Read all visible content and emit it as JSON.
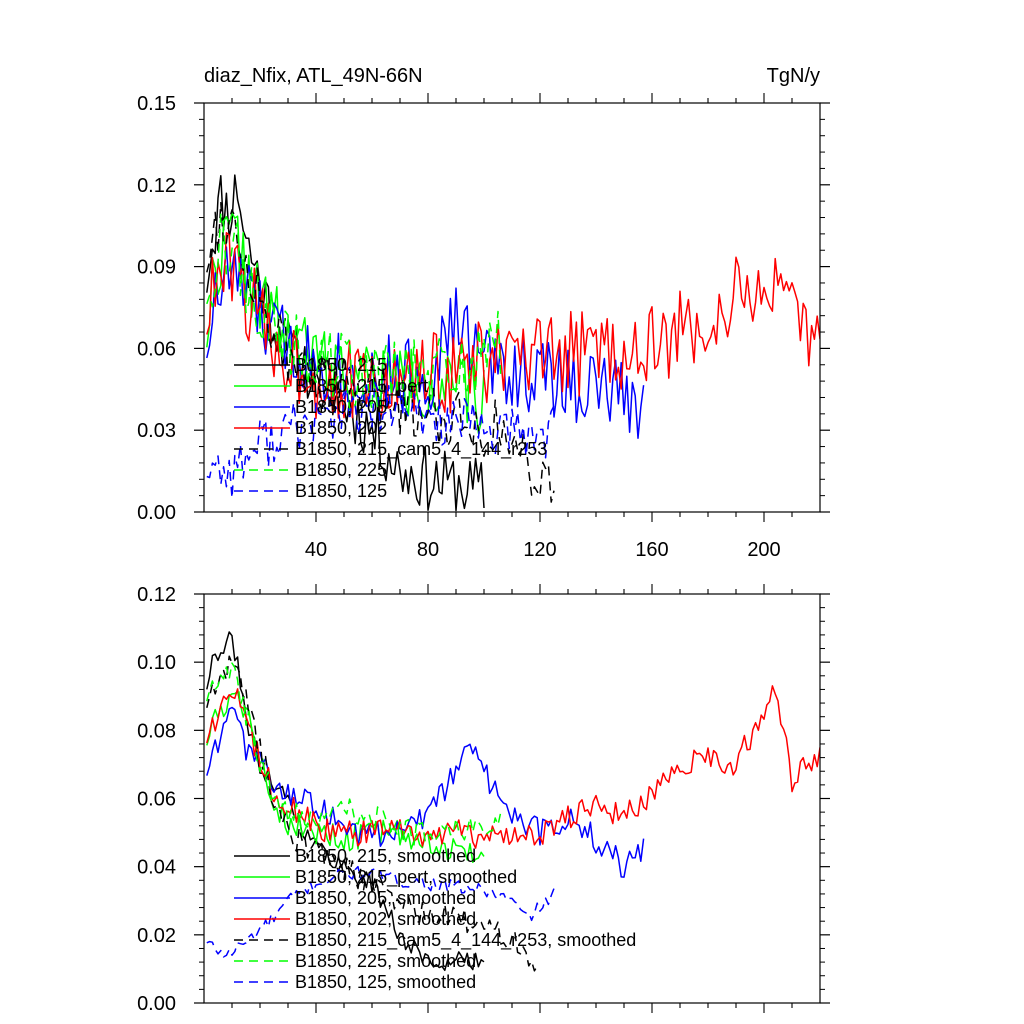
{
  "chart_data": [
    {
      "type": "line",
      "title_left": "diaz_Nfix, ATL_49N-66N",
      "title_right": "TgN/y",
      "xlabel": "",
      "ylabel": "",
      "xlim": [
        0,
        220
      ],
      "ylim": [
        0,
        0.15
      ],
      "xticks": [
        40,
        80,
        120,
        160,
        200
      ],
      "yticks": [
        0.0,
        0.03,
        0.06,
        0.09,
        0.12,
        0.15
      ],
      "ytick_labels": [
        "0.00",
        "0.03",
        "0.06",
        "0.09",
        "0.12",
        "0.15"
      ],
      "legend_position": "lower-left",
      "series": [
        {
          "name": "B1850, 215",
          "color": "#000000",
          "dash": "solid",
          "x_start": 1,
          "anchors": [
            [
              0,
              0.08
            ],
            [
              3,
              0.1
            ],
            [
              6,
              0.115
            ],
            [
              9,
              0.11
            ],
            [
              12,
              0.12
            ],
            [
              15,
              0.1
            ],
            [
              20,
              0.085
            ],
            [
              25,
              0.07
            ],
            [
              30,
              0.06
            ],
            [
              40,
              0.05
            ],
            [
              50,
              0.04
            ],
            [
              60,
              0.03
            ],
            [
              70,
              0.015
            ],
            [
              80,
              0.012
            ],
            [
              90,
              0.01
            ],
            [
              100,
              0.008
            ]
          ],
          "amp": 0.012,
          "seed": 11
        },
        {
          "name": "B1850, 215_pert",
          "color": "#00ff00",
          "dash": "solid",
          "x_start": 1,
          "anchors": [
            [
              0,
              0.06
            ],
            [
              4,
              0.09
            ],
            [
              8,
              0.1
            ],
            [
              12,
              0.1
            ],
            [
              18,
              0.08
            ],
            [
              25,
              0.07
            ],
            [
              35,
              0.06
            ],
            [
              50,
              0.05
            ],
            [
              70,
              0.048
            ],
            [
              90,
              0.045
            ],
            [
              100,
              0.04
            ]
          ],
          "amp": 0.014,
          "seed": 22
        },
        {
          "name": "B1850, 205",
          "color": "#0000ff",
          "dash": "solid",
          "x_start": 1,
          "anchors": [
            [
              0,
              0.06
            ],
            [
              5,
              0.08
            ],
            [
              10,
              0.09
            ],
            [
              15,
              0.08
            ],
            [
              25,
              0.065
            ],
            [
              40,
              0.055
            ],
            [
              60,
              0.05
            ],
            [
              80,
              0.05
            ],
            [
              90,
              0.07
            ],
            [
              100,
              0.055
            ],
            [
              120,
              0.05
            ],
            [
              140,
              0.045
            ],
            [
              157,
              0.04
            ]
          ],
          "amp": 0.015,
          "seed": 33
        },
        {
          "name": "B1850, 202",
          "color": "#ff0000",
          "dash": "solid",
          "x_start": 1,
          "anchors": [
            [
              0,
              0.07
            ],
            [
              5,
              0.085
            ],
            [
              10,
              0.09
            ],
            [
              15,
              0.08
            ],
            [
              25,
              0.06
            ],
            [
              40,
              0.05
            ],
            [
              60,
              0.045
            ],
            [
              80,
              0.05
            ],
            [
              100,
              0.055
            ],
            [
              120,
              0.055
            ],
            [
              140,
              0.06
            ],
            [
              160,
              0.06
            ],
            [
              180,
              0.07
            ],
            [
              200,
              0.085
            ],
            [
              210,
              0.07
            ],
            [
              220,
              0.06
            ]
          ],
          "amp": 0.016,
          "seed": 44
        },
        {
          "name": "B1850, 215_cam5_4_144_r253",
          "color": "#000000",
          "dash": "dash",
          "x_start": 1,
          "anchors": [
            [
              0,
              0.09
            ],
            [
              4,
              0.105
            ],
            [
              8,
              0.11
            ],
            [
              12,
              0.1
            ],
            [
              18,
              0.085
            ],
            [
              25,
              0.065
            ],
            [
              35,
              0.05
            ],
            [
              50,
              0.045
            ],
            [
              70,
              0.04
            ],
            [
              90,
              0.035
            ],
            [
              105,
              0.03
            ],
            [
              115,
              0.02
            ],
            [
              125,
              0.008
            ]
          ],
          "amp": 0.012,
          "seed": 55
        },
        {
          "name": "B1850, 225",
          "color": "#00ff00",
          "dash": "dash",
          "x_start": 1,
          "anchors": [
            [
              0,
              0.08
            ],
            [
              5,
              0.095
            ],
            [
              10,
              0.1
            ],
            [
              15,
              0.085
            ],
            [
              25,
              0.065
            ],
            [
              40,
              0.055
            ],
            [
              60,
              0.05
            ],
            [
              80,
              0.05
            ],
            [
              95,
              0.055
            ],
            [
              106,
              0.06
            ]
          ],
          "amp": 0.014,
          "seed": 66
        },
        {
          "name": "B1850, 125",
          "color": "#0000ff",
          "dash": "dash",
          "x_start": 1,
          "anchors": [
            [
              0,
              0.018
            ],
            [
              10,
              0.015
            ],
            [
              20,
              0.025
            ],
            [
              30,
              0.03
            ],
            [
              45,
              0.035
            ],
            [
              60,
              0.038
            ],
            [
              80,
              0.035
            ],
            [
              100,
              0.03
            ],
            [
              115,
              0.028
            ],
            [
              125,
              0.03
            ]
          ],
          "amp": 0.01,
          "seed": 77
        }
      ]
    },
    {
      "type": "line",
      "title_left": "",
      "title_right": "",
      "xlabel": "",
      "ylabel": "",
      "xlim": [
        0,
        220
      ],
      "ylim": [
        0,
        0.12
      ],
      "xticks": [
        40,
        80,
        120,
        160,
        200
      ],
      "yticks": [
        0.0,
        0.02,
        0.04,
        0.06,
        0.08,
        0.1,
        0.12
      ],
      "ytick_labels": [
        "0.00",
        "0.02",
        "0.04",
        "0.06",
        "0.08",
        "0.10",
        "0.12"
      ],
      "legend_position": "lower-left",
      "series": [
        {
          "name": "B1850, 215, smoothed",
          "color": "#000000",
          "dash": "solid",
          "x_start": 1,
          "anchors": [
            [
              0,
              0.09
            ],
            [
              3,
              0.1
            ],
            [
              6,
              0.102
            ],
            [
              8,
              0.107
            ],
            [
              10,
              0.105
            ],
            [
              12,
              0.1
            ],
            [
              16,
              0.08
            ],
            [
              20,
              0.07
            ],
            [
              25,
              0.065
            ],
            [
              30,
              0.06
            ],
            [
              35,
              0.052
            ],
            [
              40,
              0.046
            ],
            [
              50,
              0.04
            ],
            [
              60,
              0.035
            ],
            [
              70,
              0.02
            ],
            [
              80,
              0.012
            ],
            [
              90,
              0.012
            ],
            [
              100,
              0.012
            ]
          ],
          "amp": 0.003,
          "seed": 111
        },
        {
          "name": "B1850, 215_pert, smoothed",
          "color": "#00ff00",
          "dash": "solid",
          "x_start": 1,
          "anchors": [
            [
              0,
              0.075
            ],
            [
              5,
              0.085
            ],
            [
              10,
              0.092
            ],
            [
              15,
              0.085
            ],
            [
              20,
              0.07
            ],
            [
              25,
              0.06
            ],
            [
              30,
              0.052
            ],
            [
              40,
              0.05
            ],
            [
              50,
              0.048
            ],
            [
              60,
              0.05
            ],
            [
              70,
              0.05
            ],
            [
              80,
              0.048
            ],
            [
              90,
              0.045
            ],
            [
              100,
              0.043
            ]
          ],
          "amp": 0.004,
          "seed": 222
        },
        {
          "name": "B1850, 205, smoothed",
          "color": "#0000ff",
          "dash": "solid",
          "x_start": 1,
          "anchors": [
            [
              0,
              0.066
            ],
            [
              5,
              0.075
            ],
            [
              10,
              0.085
            ],
            [
              15,
              0.075
            ],
            [
              20,
              0.07
            ],
            [
              25,
              0.065
            ],
            [
              35,
              0.06
            ],
            [
              45,
              0.055
            ],
            [
              55,
              0.05
            ],
            [
              65,
              0.05
            ],
            [
              75,
              0.052
            ],
            [
              82,
              0.058
            ],
            [
              90,
              0.068
            ],
            [
              95,
              0.077
            ],
            [
              100,
              0.068
            ],
            [
              110,
              0.055
            ],
            [
              120,
              0.05
            ],
            [
              130,
              0.055
            ],
            [
              140,
              0.048
            ],
            [
              150,
              0.04
            ],
            [
              157,
              0.046
            ]
          ],
          "amp": 0.004,
          "seed": 333
        },
        {
          "name": "B1850, 202, smoothed",
          "color": "#ff0000",
          "dash": "solid",
          "x_start": 1,
          "anchors": [
            [
              0,
              0.075
            ],
            [
              5,
              0.085
            ],
            [
              10,
              0.093
            ],
            [
              15,
              0.085
            ],
            [
              20,
              0.07
            ],
            [
              25,
              0.062
            ],
            [
              35,
              0.055
            ],
            [
              45,
              0.05
            ],
            [
              60,
              0.05
            ],
            [
              75,
              0.05
            ],
            [
              90,
              0.05
            ],
            [
              100,
              0.048
            ],
            [
              120,
              0.05
            ],
            [
              130,
              0.055
            ],
            [
              140,
              0.058
            ],
            [
              150,
              0.055
            ],
            [
              160,
              0.06
            ],
            [
              170,
              0.07
            ],
            [
              180,
              0.072
            ],
            [
              190,
              0.07
            ],
            [
              200,
              0.085
            ],
            [
              203,
              0.093
            ],
            [
              206,
              0.085
            ],
            [
              210,
              0.065
            ],
            [
              215,
              0.07
            ],
            [
              220,
              0.074
            ]
          ],
          "amp": 0.004,
          "seed": 444
        },
        {
          "name": "B1850, 215_cam5_4_144_r253, smoothed",
          "color": "#000000",
          "dash": "dash",
          "x_start": 1,
          "anchors": [
            [
              0,
              0.085
            ],
            [
              5,
              0.095
            ],
            [
              10,
              0.1
            ],
            [
              15,
              0.09
            ],
            [
              20,
              0.075
            ],
            [
              25,
              0.06
            ],
            [
              30,
              0.05
            ],
            [
              40,
              0.045
            ],
            [
              50,
              0.04
            ],
            [
              60,
              0.035
            ],
            [
              70,
              0.03
            ],
            [
              80,
              0.025
            ],
            [
              90,
              0.025
            ],
            [
              100,
              0.022
            ],
            [
              110,
              0.02
            ],
            [
              120,
              0.01
            ]
          ],
          "amp": 0.004,
          "seed": 555
        },
        {
          "name": "B1850, 225, smoothed",
          "color": "#00ff00",
          "dash": "dash",
          "x_start": 1,
          "anchors": [
            [
              0,
              0.087
            ],
            [
              5,
              0.095
            ],
            [
              10,
              0.097
            ],
            [
              15,
              0.085
            ],
            [
              20,
              0.07
            ],
            [
              30,
              0.055
            ],
            [
              40,
              0.055
            ],
            [
              50,
              0.058
            ],
            [
              60,
              0.055
            ],
            [
              70,
              0.05
            ],
            [
              80,
              0.05
            ],
            [
              90,
              0.052
            ],
            [
              100,
              0.05
            ],
            [
              106,
              0.057
            ]
          ],
          "amp": 0.004,
          "seed": 666
        },
        {
          "name": "B1850, 125, smoothed",
          "color": "#0000ff",
          "dash": "dash",
          "x_start": 1,
          "anchors": [
            [
              0,
              0.018
            ],
            [
              8,
              0.014
            ],
            [
              15,
              0.018
            ],
            [
              25,
              0.025
            ],
            [
              30,
              0.03
            ],
            [
              40,
              0.035
            ],
            [
              50,
              0.038
            ],
            [
              60,
              0.038
            ],
            [
              70,
              0.036
            ],
            [
              80,
              0.035
            ],
            [
              90,
              0.034
            ],
            [
              100,
              0.033
            ],
            [
              110,
              0.03
            ],
            [
              115,
              0.025
            ],
            [
              120,
              0.028
            ],
            [
              125,
              0.032
            ]
          ],
          "amp": 0.002,
          "seed": 777
        }
      ]
    }
  ]
}
